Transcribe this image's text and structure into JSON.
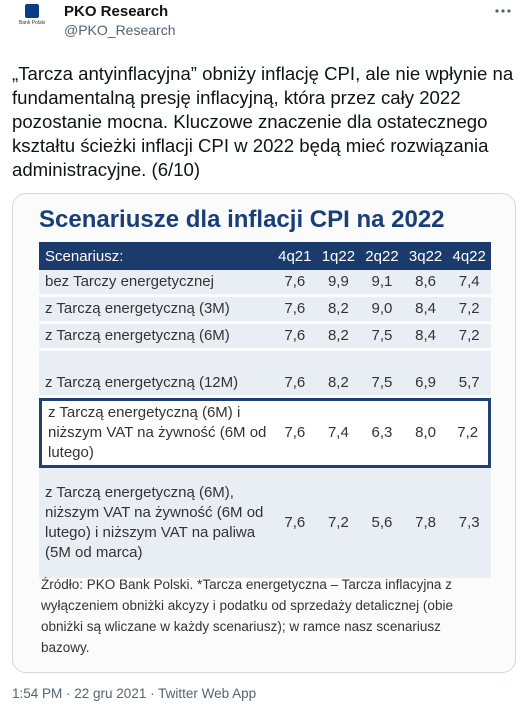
{
  "tweet": {
    "author": {
      "name": "PKO Research",
      "handle": "@PKO_Research",
      "avatar_text": "Bank Polski"
    },
    "text": "„Tarcza antyinflacyjna” obniży inflację CPI, ale nie wpłynie na fundamentalną presję inflacyjną, która przez cały 2022 pozostanie mocna. Kluczowe znaczenie dla ostatecznego kształtu ścieżki inflacji CPI w 2022 będą mieć rozwiązania administracyjne. (6/10)",
    "image": {
      "title": "Scenariusze dla inflacji CPI na 2022",
      "table": {
        "header": [
          "Scenariusz:",
          "4q21",
          "1q22",
          "2q22",
          "3q22",
          "4q22"
        ],
        "rows": [
          [
            "bez Tarczy energetycznej",
            "7,6",
            "9,9",
            "9,1",
            "8,6",
            "7,4"
          ],
          [
            "z Tarczą energetyczną (3M)",
            "7,6",
            "8,2",
            "9,0",
            "8,4",
            "7,2"
          ],
          [
            "z Tarczą energetyczną (6M)",
            "7,6",
            "8,2",
            "7,5",
            "8,4",
            "7,2"
          ],
          [
            "z Tarczą energetyczną (12M)",
            "7,6",
            "8,2",
            "7,5",
            "6,9",
            "5,7"
          ],
          [
            "z Tarczą energetyczną (6M) i niższym VAT na żywność (6M od lutego)",
            "7,6",
            "7,4",
            "6,3",
            "8,0",
            "7,2"
          ],
          [
            "z Tarczą energetyczną (6M), niższym VAT na żywność (6M od lutego) i niższym VAT na paliwa (5M od marca)",
            "7,6",
            "7,2",
            "5,6",
            "7,8",
            "7,3"
          ]
        ],
        "highlighted_row": 4
      },
      "source": "Źródło: PKO Bank Polski. *Tarcza energetyczna – Tarcza inflacyjna z wyłączeniem obniżki akcyzy i podatku od sprzedaży detalicznej (obie obniżki są wliczane w każdy scenariusz); w ramce nasz scenariusz bazowy."
    },
    "footer": "1:54 PM · 22 gru 2021 · Twitter Web App"
  }
}
